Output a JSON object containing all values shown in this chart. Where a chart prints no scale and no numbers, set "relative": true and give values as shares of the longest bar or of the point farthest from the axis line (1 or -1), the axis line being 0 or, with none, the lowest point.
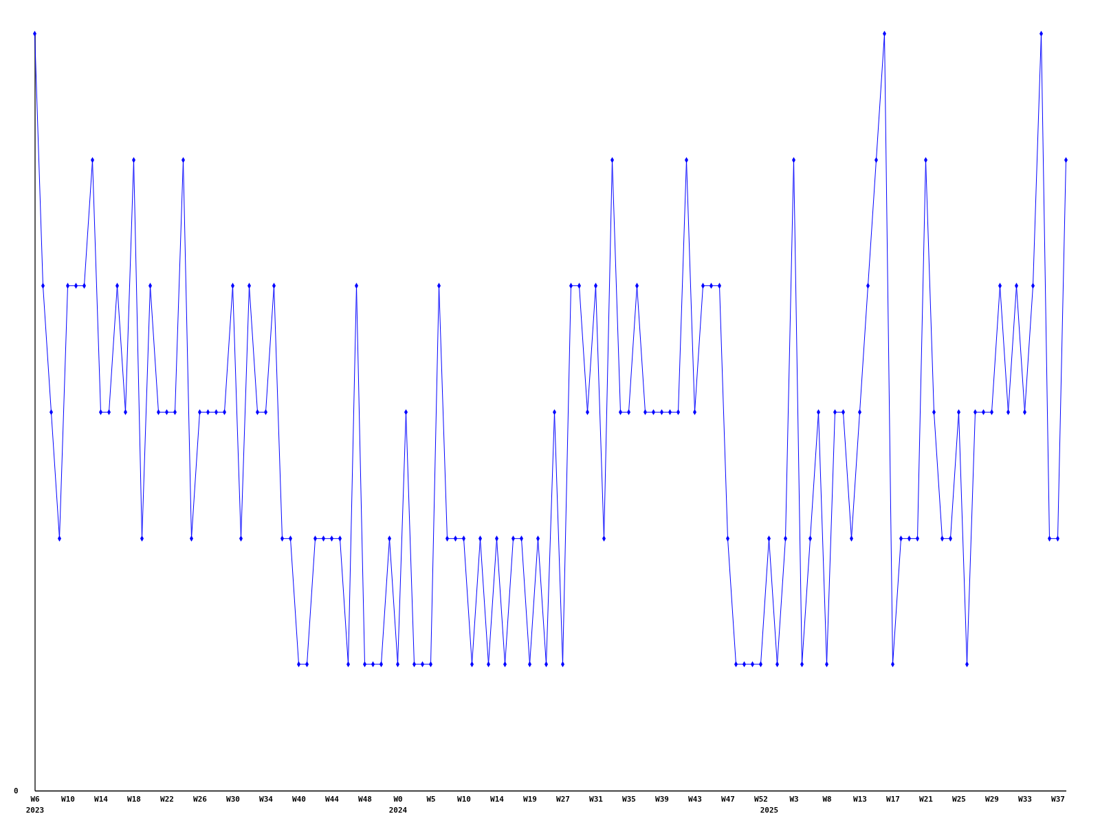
{
  "chart_data": {
    "type": "line",
    "categories": [
      "W6\n2023",
      null,
      null,
      null,
      "W10",
      null,
      null,
      null,
      "W14",
      null,
      null,
      null,
      "W18",
      null,
      null,
      null,
      "W22",
      null,
      null,
      null,
      "W26",
      null,
      null,
      null,
      "W30",
      null,
      null,
      null,
      "W34",
      null,
      null,
      null,
      "W40",
      null,
      null,
      null,
      "W44",
      null,
      null,
      null,
      "W48",
      null,
      null,
      null,
      "W0\n2024",
      null,
      null,
      null,
      "W5",
      null,
      null,
      null,
      "W10",
      null,
      null,
      null,
      "W14",
      null,
      null,
      null,
      "W19",
      null,
      null,
      null,
      "W27",
      null,
      null,
      null,
      "W31",
      null,
      null,
      null,
      "W35",
      null,
      null,
      null,
      "W39",
      null,
      null,
      null,
      "W43",
      null,
      null,
      null,
      "W47",
      null,
      null,
      null,
      "W52",
      "\n2025",
      null,
      null,
      "W3",
      null,
      null,
      null,
      "W8",
      null,
      null,
      null,
      "W13",
      null,
      null,
      null,
      "W17",
      null,
      null,
      null,
      "W21",
      null,
      null,
      null,
      "W25",
      null,
      null,
      null,
      "W29",
      null,
      null,
      null,
      "W33",
      null,
      null,
      null,
      "W37",
      null
    ],
    "values": [
      1,
      0.667,
      0.5,
      0.333,
      0.667,
      0.667,
      0.667,
      0.833,
      0.5,
      0.5,
      0.667,
      0.5,
      0.833,
      0.333,
      0.667,
      0.5,
      0.5,
      0.5,
      0.833,
      0.333,
      0.5,
      0.5,
      0.5,
      0.5,
      0.667,
      0.333,
      0.667,
      0.5,
      0.5,
      0.667,
      0.333,
      0.333,
      0.167,
      0.167,
      0.333,
      0.333,
      0.333,
      0.333,
      0.167,
      0.667,
      0.167,
      0.167,
      0.167,
      0.333,
      0.167,
      0.5,
      0.167,
      0.167,
      0.167,
      0.667,
      0.333,
      0.333,
      0.333,
      0.167,
      0.333,
      0.167,
      0.333,
      0.167,
      0.333,
      0.333,
      0.167,
      0.333,
      0.167,
      0.5,
      0.167,
      0.667,
      0.667,
      0.5,
      0.667,
      0.333,
      0.833,
      0.5,
      0.5,
      0.667,
      0.5,
      0.5,
      0.5,
      0.5,
      0.5,
      0.833,
      0.5,
      0.667,
      0.667,
      0.667,
      0.333,
      0.167,
      0.167,
      0.167,
      0.167,
      0.333,
      0.167,
      0.333,
      0.833,
      0.167,
      0.333,
      0.5,
      0.167,
      0.5,
      0.5,
      0.333,
      0.5,
      0.667,
      0.833,
      1,
      0.167,
      0.333,
      0.333,
      0.333,
      0.833,
      0.5,
      0.333,
      0.333,
      0.5,
      0.167,
      0.5,
      0.5,
      0.5,
      0.667,
      0.5,
      0.667,
      0.5,
      0.667,
      1,
      0.333,
      0.333,
      0.833
    ],
    "color": "#0000ff",
    "relative": true,
    "annotations": [
      "0"
    ],
    "marker": "diamond",
    "line_style": "solid"
  }
}
